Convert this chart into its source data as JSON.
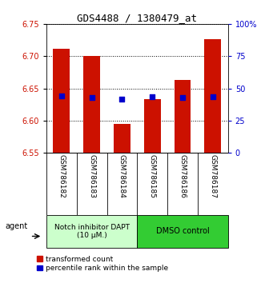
{
  "title": "GDS4488 / 1380479_at",
  "samples": [
    "GSM786182",
    "GSM786183",
    "GSM786184",
    "GSM786185",
    "GSM786186",
    "GSM786187"
  ],
  "bar_values": [
    6.712,
    6.7,
    6.595,
    6.634,
    6.663,
    6.727
  ],
  "bar_bottom": 6.55,
  "blue_dot_values": [
    6.638,
    6.636,
    6.633,
    6.637,
    6.636,
    6.637
  ],
  "bar_color": "#CC1100",
  "dot_color": "#0000CC",
  "ylim": [
    6.55,
    6.75
  ],
  "yticks_left": [
    6.55,
    6.6,
    6.65,
    6.7,
    6.75
  ],
  "yticks_right": [
    0,
    25,
    50,
    75,
    100
  ],
  "ytick_labels_right": [
    "0",
    "25",
    "50",
    "75",
    "100%"
  ],
  "group1_label": "Notch inhibitor DAPT\n(10 μM.)",
  "group2_label": "DMSO control",
  "group1_color": "#CCFFCC",
  "group2_color": "#33CC33",
  "group1_indices": [
    0,
    1,
    2
  ],
  "group2_indices": [
    3,
    4,
    5
  ],
  "legend_bar_label": "transformed count",
  "legend_dot_label": "percentile rank within the sample",
  "agent_label": "agent",
  "sample_bg_color": "#CCCCCC",
  "ylabel_left_color": "#CC1100",
  "ylabel_right_color": "#0000CC",
  "tick_fontsize": 7,
  "label_fontsize": 6.5,
  "group_fontsize": 6.5,
  "legend_fontsize": 6.5,
  "title_fontsize": 9
}
